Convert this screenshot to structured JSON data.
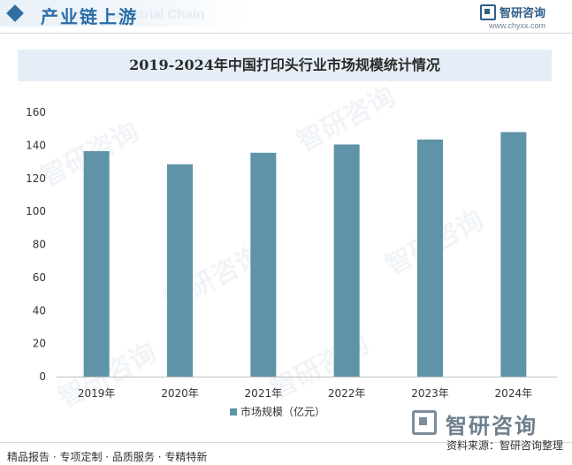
{
  "header": {
    "title": "产业链上游",
    "ghost_text": "Industrial Chain",
    "brand_name": "智研咨询",
    "brand_url": "www.chyxx.com"
  },
  "watermark": "智研咨询",
  "chart_data": {
    "type": "bar",
    "title": "2019-2024年中国打印头行业市场规模统计情况",
    "categories": [
      "2019年",
      "2020年",
      "2021年",
      "2022年",
      "2023年",
      "2024年"
    ],
    "series": [
      {
        "name": "市场规模（亿元）",
        "values": [
          136.5,
          128.5,
          135.5,
          140.5,
          143.5,
          148
        ]
      }
    ],
    "ylim": [
      0,
      160
    ],
    "yticks": [
      0,
      20,
      40,
      60,
      80,
      100,
      120,
      140,
      160
    ],
    "xlabel": "",
    "ylabel": "",
    "legend": "bottom",
    "grid": false,
    "bar_color": "#5f93a8"
  },
  "footer": {
    "tags": "精品报告 · 专项定制 · 品质服务 · 专精特新",
    "logo_text": "智研咨询",
    "source": "资料来源：智研咨询整理"
  }
}
